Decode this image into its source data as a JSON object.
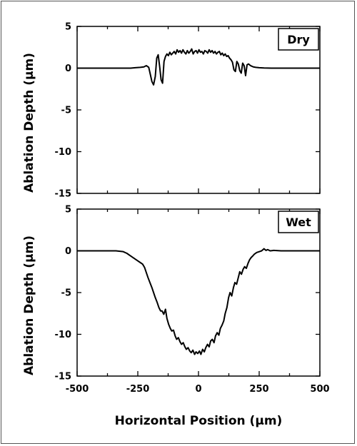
{
  "chart_data": [
    {
      "type": "line",
      "label": "Dry",
      "ylabel": "Ablation Depth (µm)",
      "xlabel": "",
      "xlim": [
        -500,
        500
      ],
      "ylim": [
        -15,
        5
      ],
      "yticks": [
        5,
        0,
        -5,
        -10,
        -15
      ],
      "xticks": [
        -500,
        -250,
        0,
        250,
        500
      ],
      "show_x_tick_labels": false,
      "grid": false,
      "series": [
        {
          "color": "#000000",
          "x": [
            -500,
            -420,
            -350,
            -300,
            -280,
            -260,
            -240,
            -225,
            -215,
            -205,
            -198,
            -192,
            -185,
            -178,
            -172,
            -166,
            -160,
            -154,
            -148,
            -142,
            -136,
            -130,
            -124,
            -118,
            -112,
            -106,
            -100,
            -94,
            -88,
            -82,
            -76,
            -70,
            -64,
            -58,
            -52,
            -46,
            -40,
            -34,
            -28,
            -22,
            -16,
            -10,
            -4,
            2,
            8,
            14,
            20,
            26,
            32,
            38,
            44,
            50,
            56,
            62,
            68,
            74,
            80,
            86,
            92,
            98,
            104,
            110,
            116,
            122,
            128,
            134,
            140,
            146,
            152,
            158,
            164,
            170,
            176,
            182,
            188,
            194,
            200,
            206,
            212,
            218,
            226,
            236,
            250,
            270,
            300,
            350,
            420,
            500
          ],
          "y": [
            0,
            0,
            0,
            0,
            0,
            0.05,
            0.1,
            0.15,
            0.3,
            0.1,
            -0.8,
            -1.6,
            -2.0,
            -1.0,
            1.2,
            1.6,
            0.2,
            -1.4,
            -1.8,
            0.8,
            1.4,
            1.7,
            1.5,
            1.9,
            1.6,
            1.8,
            2.0,
            1.7,
            2.2,
            1.9,
            2.1,
            1.8,
            2.2,
            1.9,
            1.7,
            2.1,
            1.8,
            2.0,
            2.3,
            1.7,
            2.0,
            2.1,
            1.8,
            2.2,
            1.9,
            2.0,
            1.7,
            2.1,
            2.0,
            1.8,
            2.2,
            1.9,
            2.1,
            1.8,
            2.0,
            1.7,
            1.9,
            2.0,
            1.6,
            1.8,
            1.5,
            1.7,
            1.4,
            1.5,
            1.2,
            1.0,
            0.7,
            -0.2,
            -0.4,
            0.8,
            0.5,
            -0.3,
            -0.6,
            0.6,
            0.3,
            -0.9,
            0.4,
            0.5,
            0.35,
            0.25,
            0.15,
            0.1,
            0.05,
            0.02,
            0,
            0,
            0,
            0
          ]
        }
      ]
    },
    {
      "type": "line",
      "label": "Wet",
      "ylabel": "Ablation Depth (µm)",
      "xlabel": "Horizontal Position (µm)",
      "xlim": [
        -500,
        500
      ],
      "ylim": [
        -15,
        5
      ],
      "yticks": [
        5,
        0,
        -5,
        -10,
        -15
      ],
      "xticks": [
        -500,
        -250,
        0,
        250,
        500
      ],
      "show_x_tick_labels": true,
      "grid": false,
      "series": [
        {
          "color": "#000000",
          "x": [
            -500,
            -400,
            -340,
            -310,
            -295,
            -280,
            -265,
            -250,
            -240,
            -230,
            -222,
            -215,
            -208,
            -200,
            -192,
            -185,
            -178,
            -170,
            -163,
            -156,
            -150,
            -143,
            -136,
            -130,
            -123,
            -116,
            -110,
            -103,
            -96,
            -90,
            -83,
            -76,
            -70,
            -63,
            -56,
            -50,
            -43,
            -36,
            -30,
            -23,
            -16,
            -10,
            -3,
            4,
            10,
            17,
            24,
            30,
            37,
            44,
            50,
            57,
            64,
            70,
            77,
            84,
            90,
            97,
            104,
            110,
            117,
            124,
            130,
            137,
            144,
            150,
            157,
            164,
            170,
            177,
            184,
            190,
            197,
            204,
            210,
            217,
            224,
            230,
            240,
            250,
            260,
            270,
            278,
            285,
            295,
            310,
            340,
            400,
            450,
            500
          ],
          "y": [
            0,
            0,
            0,
            -0.1,
            -0.3,
            -0.6,
            -0.9,
            -1.2,
            -1.4,
            -1.6,
            -2.0,
            -2.6,
            -3.2,
            -3.8,
            -4.4,
            -5.0,
            -5.6,
            -6.2,
            -6.8,
            -7.2,
            -7.2,
            -7.6,
            -7.0,
            -8.1,
            -8.8,
            -9.3,
            -9.6,
            -9.5,
            -10.2,
            -10.6,
            -10.4,
            -10.9,
            -11.2,
            -11.0,
            -11.5,
            -11.8,
            -11.6,
            -12.0,
            -12.2,
            -11.9,
            -12.4,
            -12.1,
            -12.3,
            -12.0,
            -12.4,
            -11.8,
            -12.1,
            -11.6,
            -11.2,
            -11.5,
            -10.8,
            -10.6,
            -11.0,
            -10.2,
            -9.8,
            -10.1,
            -9.3,
            -8.9,
            -8.4,
            -7.5,
            -6.8,
            -5.6,
            -5.0,
            -5.4,
            -4.4,
            -3.8,
            -4.0,
            -3.2,
            -2.5,
            -2.8,
            -2.2,
            -1.9,
            -2.1,
            -1.5,
            -1.1,
            -0.8,
            -0.6,
            -0.4,
            -0.2,
            -0.1,
            0.0,
            0.25,
            0.05,
            0.15,
            0.0,
            0.05,
            0.0,
            0.0,
            0.0,
            0.0
          ]
        }
      ]
    }
  ]
}
